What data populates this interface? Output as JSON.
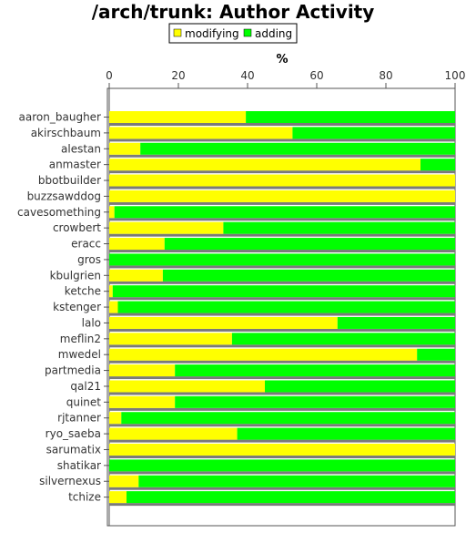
{
  "chart_data": {
    "type": "bar",
    "orientation": "horizontal",
    "stacked": true,
    "title": "/arch/trunk: Author Activity",
    "xlabel": "%",
    "ylabel": "",
    "xlim": [
      0,
      100
    ],
    "x_ticks": [
      "0",
      "20",
      "40",
      "60",
      "80",
      "100"
    ],
    "legend_position": "top",
    "categories": [
      "aaron_baugher",
      "akirschbaum",
      "alestan",
      "anmaster",
      "bbotbuilder",
      "buzzsawddog",
      "cavesomething",
      "crowbert",
      "eracc",
      "gros",
      "kbulgrien",
      "ketche",
      "kstenger",
      "lalo",
      "meflin2",
      "mwedel",
      "partmedia",
      "qal21",
      "quinet",
      "rjtanner",
      "ryo_saeba",
      "sarumatix",
      "shatikar",
      "silvernexus",
      "tchize"
    ],
    "series": [
      {
        "name": "modifying",
        "color": "#ffff00",
        "values": [
          39.5,
          53,
          9,
          90,
          100,
          100,
          1.5,
          33,
          16,
          0,
          15.5,
          1,
          2.5,
          66,
          35.5,
          89,
          19,
          45,
          19,
          3.5,
          37,
          100,
          0,
          8.5,
          5
        ]
      },
      {
        "name": "adding",
        "color": "#00ff00",
        "values": [
          60.5,
          47,
          91,
          10,
          0,
          0,
          98.5,
          67,
          84,
          100,
          84.5,
          99,
          97.5,
          34,
          64.5,
          11,
          81,
          55,
          81,
          96.5,
          63,
          0,
          100,
          91.5,
          95
        ]
      }
    ]
  }
}
